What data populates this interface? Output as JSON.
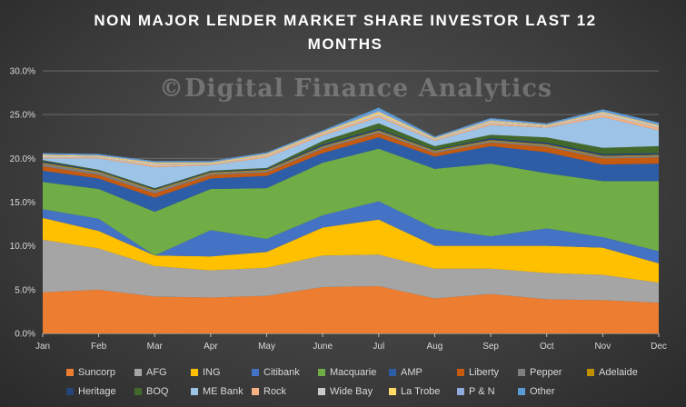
{
  "chart_data": {
    "type": "area",
    "stacked": true,
    "title": "NON MAJOR LENDER MARKET SHARE INVESTOR LAST 12 MONTHS",
    "watermark": "©Digital Finance Analytics",
    "xlabel": "",
    "ylabel": "",
    "categories": [
      "Jan",
      "Feb",
      "Mar",
      "Apr",
      "May",
      "June",
      "Jul",
      "Aug",
      "Sep",
      "Oct",
      "Nov",
      "Dec"
    ],
    "ylim": [
      0,
      30
    ],
    "yticks": [
      "0.0%",
      "5.0%",
      "10.0%",
      "15.0%",
      "20.0%",
      "25.0%",
      "30.0%"
    ],
    "grid": true,
    "legend_position": "bottom",
    "series": [
      {
        "name": "Suncorp",
        "color": "#ed7d31",
        "values": [
          4.7,
          5.0,
          4.2,
          4.1,
          4.3,
          5.3,
          5.4,
          4.0,
          4.5,
          3.9,
          3.8,
          3.5
        ]
      },
      {
        "name": "AFG",
        "color": "#a5a5a5",
        "values": [
          6.0,
          4.7,
          3.5,
          3.1,
          3.2,
          3.6,
          3.6,
          3.4,
          2.9,
          3.0,
          2.9,
          2.3
        ]
      },
      {
        "name": "ING",
        "color": "#ffc000",
        "values": [
          2.5,
          2.0,
          1.2,
          1.6,
          1.8,
          3.2,
          4.0,
          2.6,
          2.6,
          3.1,
          3.1,
          2.2
        ]
      },
      {
        "name": "Citibank",
        "color": "#4472c4",
        "values": [
          1.0,
          1.4,
          0.0,
          3.0,
          1.5,
          1.4,
          2.1,
          2.0,
          1.1,
          2.0,
          1.2,
          1.4
        ]
      },
      {
        "name": "Macquarie",
        "color": "#70ad47",
        "values": [
          3.1,
          3.4,
          5.0,
          4.7,
          5.8,
          6.0,
          6.0,
          6.8,
          8.3,
          6.3,
          6.4,
          8.0
        ]
      },
      {
        "name": "AMP",
        "color": "#2e5da8",
        "values": [
          1.3,
          1.2,
          1.6,
          1.2,
          1.4,
          1.1,
          1.3,
          1.4,
          2.0,
          2.4,
          1.9,
          2.0
        ]
      },
      {
        "name": "Liberty",
        "color": "#c55a11",
        "values": [
          0.5,
          0.4,
          0.5,
          0.4,
          0.4,
          0.5,
          0.5,
          0.4,
          0.4,
          0.6,
          0.7,
          0.7
        ]
      },
      {
        "name": "Pepper",
        "color": "#7f7f7f",
        "values": [
          0.3,
          0.3,
          0.3,
          0.2,
          0.2,
          0.2,
          0.2,
          0.2,
          0.2,
          0.2,
          0.2,
          0.2
        ]
      },
      {
        "name": "Adelaide",
        "color": "#bf9000",
        "values": [
          0.1,
          0.1,
          0.1,
          0.1,
          0.1,
          0.1,
          0.1,
          0.1,
          0.1,
          0.1,
          0.1,
          0.1
        ]
      },
      {
        "name": "Heritage",
        "color": "#264478",
        "values": [
          0.2,
          0.1,
          0.1,
          0.1,
          0.1,
          0.2,
          0.2,
          0.1,
          0.2,
          0.2,
          0.2,
          0.2
        ]
      },
      {
        "name": "BOQ",
        "color": "#43682b",
        "values": [
          0.1,
          0.1,
          0.1,
          0.1,
          0.1,
          0.4,
          0.6,
          0.4,
          0.4,
          0.6,
          0.7,
          0.8
        ]
      },
      {
        "name": "ME Bank",
        "color": "#9dc3e6",
        "values": [
          0.2,
          1.3,
          2.4,
          0.6,
          1.2,
          0.6,
          0.7,
          0.6,
          1.1,
          1.1,
          3.5,
          1.8
        ]
      },
      {
        "name": "Rock",
        "color": "#f4b183",
        "values": [
          0.1,
          0.1,
          0.2,
          0.1,
          0.2,
          0.2,
          0.2,
          0.1,
          0.2,
          0.1,
          0.3,
          0.3
        ]
      },
      {
        "name": "Wide Bay",
        "color": "#c9c9c9",
        "values": [
          0.2,
          0.1,
          0.2,
          0.1,
          0.1,
          0.1,
          0.2,
          0.1,
          0.2,
          0.1,
          0.2,
          0.2
        ]
      },
      {
        "name": "La Trobe",
        "color": "#ffd966",
        "values": [
          0.1,
          0.1,
          0.1,
          0.1,
          0.1,
          0.1,
          0.2,
          0.1,
          0.1,
          0.1,
          0.1,
          0.1
        ]
      },
      {
        "name": "P & N",
        "color": "#8faadc",
        "values": [
          0.1,
          0.1,
          0.1,
          0.1,
          0.1,
          0.1,
          0.2,
          0.1,
          0.2,
          0.1,
          0.1,
          0.1
        ]
      },
      {
        "name": "Other",
        "color": "#5b9bd5",
        "values": [
          0.1,
          0.1,
          0.1,
          0.1,
          0.1,
          0.1,
          0.3,
          0.1,
          0.1,
          0.1,
          0.2,
          0.2
        ]
      }
    ]
  }
}
